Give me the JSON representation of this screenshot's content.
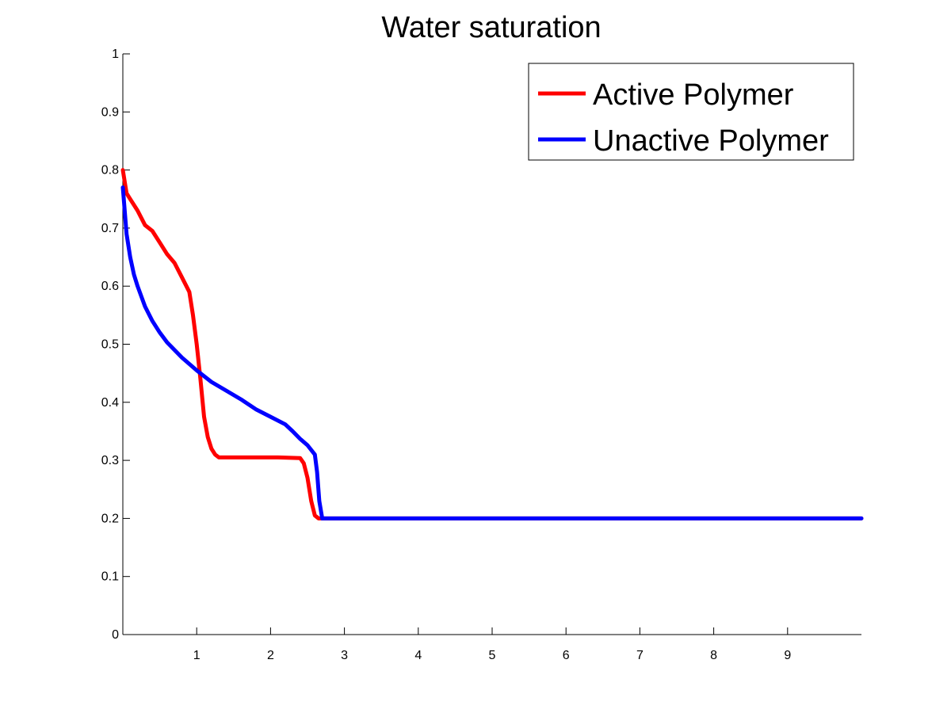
{
  "chart_data": {
    "type": "line",
    "title": "Water saturation",
    "xlabel": "",
    "ylabel": "",
    "xlim": [
      0,
      10
    ],
    "ylim": [
      0,
      1
    ],
    "grid": false,
    "legend_position": "top-right",
    "x_ticks": [
      1,
      2,
      3,
      4,
      5,
      6,
      7,
      8,
      9
    ],
    "x_tick_labels": [
      "1",
      "2",
      "3",
      "4",
      "5",
      "6",
      "7",
      "8",
      "9"
    ],
    "y_ticks": [
      0,
      0.1,
      0.2,
      0.3,
      0.4,
      0.5,
      0.6,
      0.7,
      0.8,
      0.9,
      1
    ],
    "y_tick_labels": [
      "0",
      "0.1",
      "0.2",
      "0.3",
      "0.4",
      "0.5",
      "0.6",
      "0.7",
      "0.8",
      "0.9",
      "1"
    ],
    "series": [
      {
        "name": "Active Polymer",
        "color": "#ff0000",
        "x": [
          0,
          0.05,
          0.1,
          0.2,
          0.3,
          0.4,
          0.5,
          0.6,
          0.7,
          0.8,
          0.9,
          0.95,
          1.0,
          1.05,
          1.1,
          1.15,
          1.2,
          1.25,
          1.3,
          1.5,
          1.8,
          2.1,
          2.4,
          2.45,
          2.5,
          2.55,
          2.6,
          2.65,
          2.7,
          3.0,
          4.0,
          6.0,
          8.0,
          10.0
        ],
        "y": [
          0.8,
          0.76,
          0.75,
          0.73,
          0.705,
          0.695,
          0.675,
          0.655,
          0.64,
          0.615,
          0.59,
          0.55,
          0.5,
          0.44,
          0.375,
          0.34,
          0.32,
          0.31,
          0.305,
          0.305,
          0.305,
          0.305,
          0.304,
          0.295,
          0.27,
          0.23,
          0.205,
          0.2,
          0.2,
          0.2,
          0.2,
          0.2,
          0.2,
          0.2
        ]
      },
      {
        "name": "Unactive Polymer",
        "color": "#0000ff",
        "x": [
          0,
          0.05,
          0.1,
          0.15,
          0.2,
          0.3,
          0.4,
          0.5,
          0.6,
          0.7,
          0.8,
          1.0,
          1.2,
          1.4,
          1.6,
          1.8,
          2.0,
          2.2,
          2.3,
          2.4,
          2.5,
          2.6,
          2.63,
          2.66,
          2.7,
          2.75,
          3.0,
          4.0,
          6.0,
          8.0,
          10.0
        ],
        "y": [
          0.77,
          0.69,
          0.65,
          0.62,
          0.6,
          0.565,
          0.54,
          0.52,
          0.503,
          0.49,
          0.477,
          0.455,
          0.435,
          0.42,
          0.405,
          0.388,
          0.375,
          0.362,
          0.35,
          0.337,
          0.326,
          0.31,
          0.28,
          0.23,
          0.2,
          0.2,
          0.2,
          0.2,
          0.2,
          0.2,
          0.2
        ]
      }
    ]
  }
}
